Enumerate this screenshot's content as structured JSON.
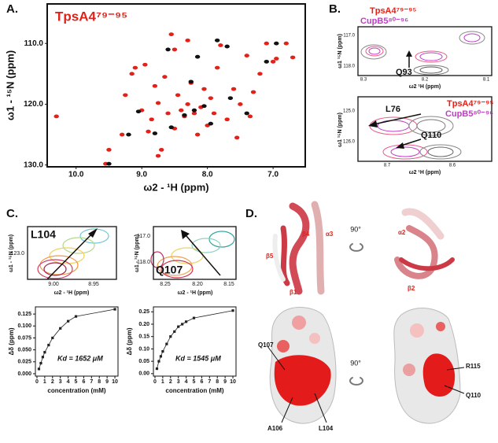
{
  "chart_data": [
    {
      "type": "scatter",
      "panel": "A.",
      "title": "TpsA4⁷⁹⁻⁹⁵",
      "xlabel": "ω2 - ¹H (ppm)",
      "ylabel": "ω1 - ¹⁵N (ppm)",
      "xlim": [
        10.44,
        6.51
      ],
      "ylim": [
        130.3,
        103.5
      ],
      "xticks": [
        {
          "value": 10,
          "label": "10.0"
        },
        {
          "value": 9,
          "label": "9.0"
        },
        {
          "value": 8,
          "label": "8.0"
        },
        {
          "value": 7,
          "label": "7.0"
        }
      ],
      "yticks": [
        {
          "value": 110,
          "label": "110.0"
        },
        {
          "value": 120,
          "label": "120.0"
        },
        {
          "value": 130,
          "label": "130.0"
        }
      ],
      "series": [
        {
          "color": "#e32119",
          "x": [
            10.3,
            9.55,
            9.5,
            9.3,
            9.25,
            9.15,
            9.1,
            9.0,
            8.95,
            8.85,
            8.9,
            8.8,
            8.75,
            8.7,
            8.65,
            8.6,
            8.5,
            8.5,
            8.45,
            8.4,
            8.35,
            8.3,
            8.3,
            8.25,
            8.2,
            8.15,
            8.1,
            8.05,
            8.0,
            7.95,
            7.9,
            7.85,
            7.8,
            7.7,
            7.6,
            7.5,
            7.4,
            7.35,
            7.3,
            7.2,
            7.1,
            7.0,
            6.95,
            6.8,
            6.7,
            8.55,
            8.75,
            7.55
          ],
          "values": [
            122,
            129.8,
            127.5,
            125,
            118.5,
            115,
            114,
            121,
            113.5,
            122.5,
            124.5,
            117,
            119.8,
            127.5,
            115.5,
            121.5,
            111,
            124,
            118.5,
            121,
            122,
            120,
            109.5,
            116.5,
            121.5,
            125,
            120.5,
            117.5,
            123.5,
            119,
            121.5,
            114,
            110.3,
            122.5,
            117.5,
            120,
            112,
            122,
            118,
            115,
            110,
            113,
            112.5,
            110,
            112.3,
            108.5,
            128.5,
            125.5
          ]
        },
        {
          "color": "#111111",
          "x": [
            9.5,
            9.2,
            9.05,
            8.8,
            8.55,
            8.35,
            8.2,
            8.25,
            8.05,
            7.95,
            7.85,
            7.7,
            7.4,
            7.1,
            6.95,
            8.6,
            8.15,
            7.65
          ],
          "values": [
            129.8,
            125,
            121.2,
            124.8,
            123.8,
            121.8,
            121,
            116.3,
            120.3,
            123.2,
            109.5,
            110.5,
            121.5,
            113,
            110,
            111,
            112.2,
            119
          ]
        }
      ]
    },
    {
      "type": "line",
      "annotation": "Kd = 1652 μM",
      "xlabel": "concentration (mM)",
      "ylabel": "Δδ (ppm)",
      "xlim": [
        -0.2,
        10.4
      ],
      "ylim": [
        -0.005,
        0.14
      ],
      "xticks": [
        0,
        1,
        2,
        3,
        4,
        5,
        6,
        7,
        8,
        9,
        10
      ],
      "yticks": [
        {
          "value": 0,
          "label": "0.000"
        },
        {
          "value": 0.025,
          "label": "0.025"
        },
        {
          "value": 0.05,
          "label": "0.050"
        },
        {
          "value": 0.075,
          "label": "0.075"
        },
        {
          "value": 0.1,
          "label": "0.100"
        },
        {
          "value": 0.125,
          "label": "0.125"
        }
      ],
      "series": [
        {
          "color": "#222222",
          "x": [
            0.25,
            0.5,
            0.75,
            1,
            1.5,
            2,
            3,
            4,
            5,
            10
          ],
          "values": [
            0.01,
            0.022,
            0.035,
            0.045,
            0.06,
            0.075,
            0.095,
            0.11,
            0.12,
            0.135
          ]
        }
      ]
    },
    {
      "type": "line",
      "annotation": "Kd = 1545 μM",
      "xlabel": "concentration (mM)",
      "ylabel": "Δδ (ppm)",
      "xlim": [
        -0.2,
        10.4
      ],
      "ylim": [
        -0.01,
        0.27
      ],
      "xticks": [
        0,
        1,
        2,
        3,
        4,
        5,
        6,
        7,
        8,
        9,
        10
      ],
      "yticks": [
        {
          "value": 0,
          "label": "0.00"
        },
        {
          "value": 0.05,
          "label": "0.05"
        },
        {
          "value": 0.1,
          "label": "0.10"
        },
        {
          "value": 0.15,
          "label": "0.15"
        },
        {
          "value": 0.2,
          "label": "0.20"
        },
        {
          "value": 0.25,
          "label": "0.25"
        }
      ],
      "series": [
        {
          "color": "#222222",
          "x": [
            0.25,
            0.5,
            0.75,
            1,
            1.5,
            2,
            2.5,
            3,
            3.5,
            4,
            5,
            10
          ],
          "values": [
            0.02,
            0.05,
            0.07,
            0.09,
            0.12,
            0.15,
            0.17,
            0.19,
            0.2,
            0.21,
            0.225,
            0.255
          ]
        }
      ]
    }
  ],
  "panels": {
    "b": {
      "label": "B.",
      "legend": [
        "TpsA4⁷⁹⁻⁹⁵",
        "CupB5⁸⁰⁻⁹⁶"
      ],
      "legend2": [
        "TpsA4⁷⁹⁻⁹⁵",
        "CupB5⁸⁰⁻⁹⁶"
      ],
      "ylabel": "ω1 ¹⁵N (ppm)",
      "xlabel": "ω2 ¹H (ppm)",
      "top_yticks": [
        "117.0",
        "118.0"
      ],
      "top_xticks": [
        "8.3",
        "8.2",
        "8.1"
      ],
      "top_peak": "Q93",
      "bottom_yticks": [
        "125.0",
        "126.0"
      ],
      "bottom_xticks": [
        "8.7",
        "8.6"
      ],
      "bottom_peaks": [
        "L76",
        "Q110"
      ]
    },
    "c": {
      "label": "C.",
      "ylabel": "ω1 - ¹⁵N (ppm)",
      "xlabel": "ω2 - ¹H (ppm)",
      "left_peak": "L104",
      "left_yticks": [
        "123.0"
      ],
      "left_xticks": [
        "9.00",
        "8.95"
      ],
      "right_peak": "Q107",
      "right_yticks": [
        "117.0",
        "118.0"
      ],
      "right_xticks": [
        "8.25",
        "8.20",
        "8.15"
      ]
    },
    "d": {
      "label": "D.",
      "rotation": "90°",
      "rotation2": "90°",
      "left_labels": [
        "β4",
        "α3",
        "β5",
        "β1"
      ],
      "right_labels": [
        "α2",
        "β2"
      ],
      "surface_left": [
        "Q107",
        "A106",
        "L104"
      ],
      "surface_right": [
        "R115",
        "Q110"
      ]
    }
  }
}
